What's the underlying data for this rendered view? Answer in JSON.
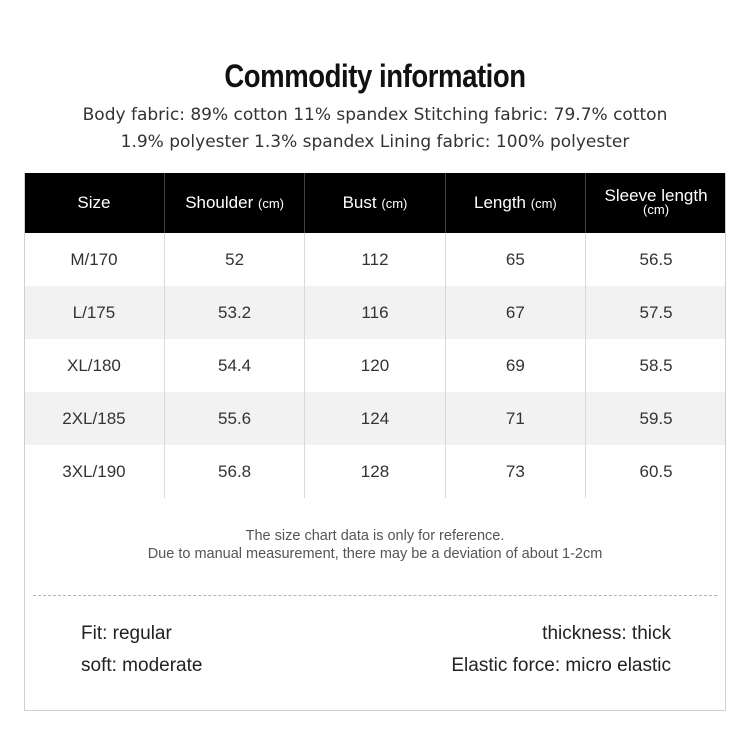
{
  "title": "Commodity information",
  "fabric": {
    "line1": "Body fabric: 89% cotton 11% spandex  Stitching fabric: 79.7% cotton",
    "line2": "1.9% polyester 1.3% spandex  Lining fabric: 100% polyester"
  },
  "table": {
    "headers": [
      {
        "label": "Size",
        "unit": ""
      },
      {
        "label": "Shoulder",
        "unit": "(cm)"
      },
      {
        "label": "Bust",
        "unit": "(cm)"
      },
      {
        "label": "Length",
        "unit": "(cm)"
      },
      {
        "label": "Sleeve length",
        "unit": "(cm)"
      }
    ],
    "rows": [
      [
        "M/170",
        "52",
        "112",
        "65",
        "56.5"
      ],
      [
        "L/175",
        "53.2",
        "116",
        "67",
        "57.5"
      ],
      [
        "XL/180",
        "54.4",
        "120",
        "69",
        "58.5"
      ],
      [
        "2XL/185",
        "55.6",
        "124",
        "71",
        "59.5"
      ],
      [
        "3XL/190",
        "56.8",
        "128",
        "73",
        "60.5"
      ]
    ]
  },
  "note": {
    "line1": "The size chart data is only for reference.",
    "line2": "Due to manual measurement, there may be a deviation of about 1-2cm"
  },
  "attributes": {
    "fit": "Fit: regular",
    "soft": "soft: moderate",
    "thickness": "thickness: thick",
    "elastic": "Elastic force: micro elastic"
  }
}
